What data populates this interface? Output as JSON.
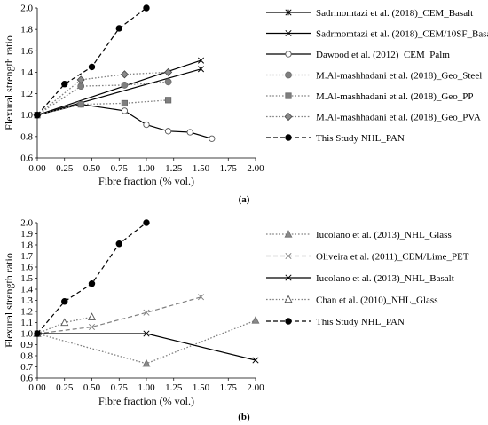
{
  "chart_data": [
    {
      "panel_label": "(a)",
      "type": "line",
      "xlabel": "Fibre fraction (% vol.)",
      "ylabel": "Flexural strength ratio",
      "xlim": [
        0,
        2
      ],
      "ylim": [
        0.6,
        2.0
      ],
      "xticks": [
        "0.00",
        "0.25",
        "0.50",
        "0.75",
        "1.00",
        "1.25",
        "1.50",
        "1.75",
        "2.00"
      ],
      "yticks": [
        "0.6",
        "0.8",
        "1.0",
        "1.2",
        "1.4",
        "1.6",
        "1.8",
        "2.0"
      ],
      "grid": false,
      "legend_position": "right",
      "series": [
        {
          "name": "Sadrmomtazi et al. (2018)_CEM_Basalt",
          "line": "solid",
          "marker": "star",
          "color": "#000000",
          "x": [
            0,
            1.5
          ],
          "y": [
            1.0,
            1.43
          ]
        },
        {
          "name": "Sadrmomtazi et al. (2018)_CEM/10SF_Basalt",
          "line": "solid",
          "marker": "cross",
          "color": "#000000",
          "x": [
            0,
            1.5
          ],
          "y": [
            1.0,
            1.51
          ]
        },
        {
          "name": "Dawood et al. (2012)_CEM_Palm",
          "line": "solid",
          "marker": "open-circle",
          "color": "#000000",
          "x": [
            0,
            0.4,
            0.8,
            1.0,
            1.2,
            1.4,
            1.6
          ],
          "y": [
            1.0,
            1.1,
            1.04,
            0.91,
            0.85,
            0.84,
            0.78
          ]
        },
        {
          "name": "M.Al-mashhadani et al. (2018)_Geo_Steel",
          "line": "dotted",
          "marker": "circle",
          "color": "#808080",
          "x": [
            0,
            0.4,
            0.8,
            1.2
          ],
          "y": [
            1.0,
            1.27,
            1.28,
            1.31
          ]
        },
        {
          "name": "M.Al-mashhadani et al. (2018)_Geo_PP",
          "line": "dotted",
          "marker": "square",
          "color": "#808080",
          "x": [
            0,
            0.4,
            0.8,
            1.2
          ],
          "y": [
            1.0,
            1.1,
            1.11,
            1.14
          ]
        },
        {
          "name": "M.Al-mashhadani et al. (2018)_Geo_PVA",
          "line": "dotted",
          "marker": "diamond",
          "color": "#808080",
          "x": [
            0,
            0.4,
            0.8,
            1.2
          ],
          "y": [
            1.0,
            1.33,
            1.38,
            1.4
          ]
        },
        {
          "name": "This Study NHL_PAN",
          "line": "dashed",
          "marker": "filled-circle",
          "color": "#000000",
          "x": [
            0,
            0.25,
            0.5,
            0.75,
            1.0
          ],
          "y": [
            1.0,
            1.29,
            1.45,
            1.81,
            2.0
          ]
        }
      ]
    },
    {
      "panel_label": "(b)",
      "type": "line",
      "xlabel": "Fibre fraction (% vol.)",
      "ylabel": "Flexural strength ratio",
      "xlim": [
        0,
        2
      ],
      "ylim": [
        0.6,
        2.0
      ],
      "xticks": [
        "0.00",
        "0.25",
        "0.50",
        "0.75",
        "1.00",
        "1.25",
        "1.50",
        "1.75",
        "2.00"
      ],
      "yticks": [
        "0.6",
        "0.7",
        "0.8",
        "0.9",
        "1.0",
        "1.1",
        "1.2",
        "1.3",
        "1.4",
        "1.5",
        "1.6",
        "1.7",
        "1.8",
        "1.9",
        "2.0"
      ],
      "grid": false,
      "legend_position": "right",
      "series": [
        {
          "name": "Iucolano et al. (2013)_NHL_Glass",
          "line": "dotted",
          "marker": "triangle",
          "color": "#808080",
          "x": [
            0,
            1.0,
            2.0
          ],
          "y": [
            1.0,
            0.73,
            1.12
          ]
        },
        {
          "name": "Oliveira et al. (2011)_CEM/Lime_PET",
          "line": "dashed",
          "marker": "cross",
          "color": "#808080",
          "x": [
            0,
            0.5,
            1.0,
            1.5
          ],
          "y": [
            1.0,
            1.06,
            1.19,
            1.33
          ]
        },
        {
          "name": "Iucolano et al. (2013)_NHL_Basalt",
          "line": "solid",
          "marker": "cross",
          "color": "#000000",
          "x": [
            0,
            1.0,
            2.0
          ],
          "y": [
            1.0,
            1.0,
            0.76
          ]
        },
        {
          "name": "Chan et al. (2010)_NHL_Glass",
          "line": "dotted",
          "marker": "open-triangle",
          "color": "#808080",
          "x": [
            0,
            0.25,
            0.5
          ],
          "y": [
            1.0,
            1.1,
            1.15
          ]
        },
        {
          "name": "This Study NHL_PAN",
          "line": "dashed",
          "marker": "filled-circle",
          "color": "#000000",
          "x": [
            0,
            0.25,
            0.5,
            0.75,
            1.0
          ],
          "y": [
            1.0,
            1.29,
            1.45,
            1.81,
            2.0
          ]
        }
      ]
    }
  ]
}
